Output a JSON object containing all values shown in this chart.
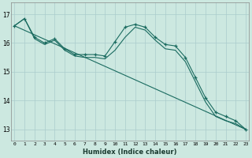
{
  "xlabel": "Humidex (Indice chaleur)",
  "background_color": "#cce8e0",
  "grid_color": "#aacccc",
  "line_color": "#1a6b60",
  "x_ticks": [
    0,
    1,
    2,
    3,
    4,
    5,
    6,
    7,
    8,
    9,
    10,
    11,
    12,
    13,
    14,
    15,
    16,
    17,
    18,
    19,
    20,
    21,
    22,
    23
  ],
  "ylim": [
    12.6,
    17.4
  ],
  "xlim": [
    -0.3,
    23.3
  ],
  "yticks": [
    13,
    14,
    15,
    16,
    17
  ],
  "curve_with_markers": {
    "x": [
      0,
      1,
      2,
      3,
      4,
      5,
      6,
      7,
      8,
      9,
      10,
      11,
      12,
      13,
      14,
      15,
      16,
      17,
      18,
      19,
      20,
      21,
      22,
      23
    ],
    "y": [
      16.6,
      16.85,
      16.2,
      16.0,
      16.15,
      15.8,
      15.6,
      15.6,
      15.6,
      15.55,
      16.05,
      16.55,
      16.65,
      16.55,
      16.2,
      15.95,
      15.9,
      15.5,
      14.8,
      14.1,
      13.6,
      13.45,
      13.3,
      13.0
    ]
  },
  "straight_line": {
    "x": [
      0,
      23
    ],
    "y": [
      16.6,
      13.0
    ]
  },
  "second_curve": {
    "x": [
      0,
      1,
      2,
      3,
      4,
      5,
      6,
      7,
      8,
      9,
      10,
      11,
      12,
      13,
      14,
      15,
      16,
      17,
      18,
      19,
      20,
      21,
      22,
      23
    ],
    "y": [
      16.6,
      16.85,
      16.15,
      15.95,
      16.1,
      15.75,
      15.55,
      15.5,
      15.5,
      15.45,
      15.75,
      16.2,
      16.55,
      16.45,
      16.1,
      15.8,
      15.75,
      15.35,
      14.65,
      13.95,
      13.45,
      13.3,
      13.2,
      13.0
    ]
  }
}
